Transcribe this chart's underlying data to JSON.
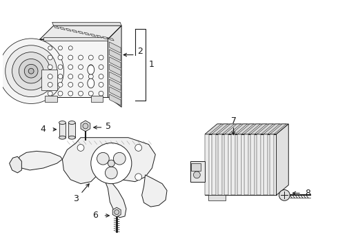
{
  "background_color": "#ffffff",
  "line_color": "#1a1a1a",
  "text_color": "#000000",
  "fig_w": 4.9,
  "fig_h": 3.6,
  "dpi": 100
}
